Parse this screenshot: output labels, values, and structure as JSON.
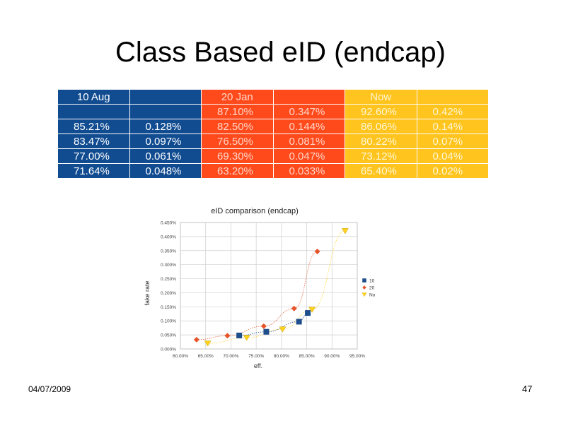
{
  "slide": {
    "title": "Class Based eID (endcap)",
    "date": "04/07/2009",
    "page_number": "47"
  },
  "table": {
    "header": [
      "10 Aug",
      "",
      "20 Jan",
      "",
      "Now",
      ""
    ],
    "rows": [
      [
        "",
        "",
        "87.10%",
        "0.347%",
        "92.60%",
        "0.42%"
      ],
      [
        "85.21%",
        "0.128%",
        "82.50%",
        "0.144%",
        "86.06%",
        "0.14%"
      ],
      [
        "83.47%",
        "0.097%",
        "76.50%",
        "0.081%",
        "80.22%",
        "0.07%"
      ],
      [
        "77.00%",
        "0.061%",
        "69.30%",
        "0.047%",
        "73.12%",
        "0.04%"
      ],
      [
        "71.64%",
        "0.048%",
        "63.20%",
        "0.033%",
        "65.40%",
        "0.02%"
      ]
    ],
    "colors": {
      "blue": "#114c91",
      "red": "#ff4a1c",
      "yellow": "#ffc41e"
    }
  },
  "chart_data": {
    "type": "scatter",
    "title": "eID comparison (endcap)",
    "xlabel": "eff.",
    "ylabel": "fake rate",
    "xlim": [
      60,
      95
    ],
    "ylim": [
      0,
      0.45
    ],
    "x_ticks": [
      "60.00%",
      "65.00%",
      "70.00%",
      "75.00%",
      "80.00%",
      "85.00%",
      "90.00%",
      "95.00%"
    ],
    "y_ticks": [
      "0.000%",
      "0.050%",
      "0.100%",
      "0.150%",
      "0.200%",
      "0.250%",
      "0.300%",
      "0.350%",
      "0.400%",
      "0.450%"
    ],
    "grid": true,
    "legend_position": "right",
    "series": [
      {
        "name": "10 Aug",
        "color": "#1f4e8c",
        "marker": "square",
        "x": [
          71.64,
          77.0,
          83.47,
          85.21
        ],
        "y": [
          0.048,
          0.061,
          0.097,
          0.128
        ]
      },
      {
        "name": "20 Jan",
        "color": "#e8542a",
        "marker": "diamond",
        "x": [
          63.2,
          69.3,
          76.5,
          82.5,
          87.1
        ],
        "y": [
          0.033,
          0.047,
          0.081,
          0.144,
          0.347
        ]
      },
      {
        "name": "Now",
        "color": "#ffd21e",
        "marker": "triangle",
        "x": [
          65.4,
          73.12,
          80.22,
          86.06,
          92.6
        ],
        "y": [
          0.02,
          0.04,
          0.07,
          0.14,
          0.42
        ]
      }
    ]
  }
}
